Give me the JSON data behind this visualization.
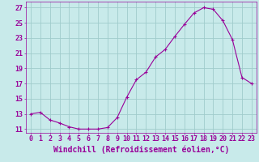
{
  "x": [
    0,
    1,
    2,
    3,
    4,
    5,
    6,
    7,
    8,
    9,
    10,
    11,
    12,
    13,
    14,
    15,
    16,
    17,
    18,
    19,
    20,
    21,
    22,
    23
  ],
  "y": [
    13.0,
    13.2,
    12.2,
    11.8,
    11.3,
    11.0,
    11.0,
    11.0,
    11.2,
    12.5,
    15.2,
    17.5,
    18.5,
    20.5,
    21.5,
    23.2,
    24.8,
    26.3,
    27.0,
    26.8,
    25.3,
    22.8,
    17.8,
    17.0
  ],
  "line_color": "#990099",
  "marker": "+",
  "marker_size": 3,
  "bg_color": "#c8eaea",
  "grid_color": "#a0cccc",
  "xlabel": "Windchill (Refroidissement éolien,°C)",
  "xlabel_fontsize": 7,
  "tick_color": "#990099",
  "tick_fontsize": 6,
  "yticks": [
    11,
    13,
    15,
    17,
    19,
    21,
    23,
    25,
    27
  ],
  "xticks": [
    0,
    1,
    2,
    3,
    4,
    5,
    6,
    7,
    8,
    9,
    10,
    11,
    12,
    13,
    14,
    15,
    16,
    17,
    18,
    19,
    20,
    21,
    22,
    23
  ],
  "ylim": [
    10.5,
    27.8
  ],
  "xlim": [
    -0.5,
    23.5
  ]
}
